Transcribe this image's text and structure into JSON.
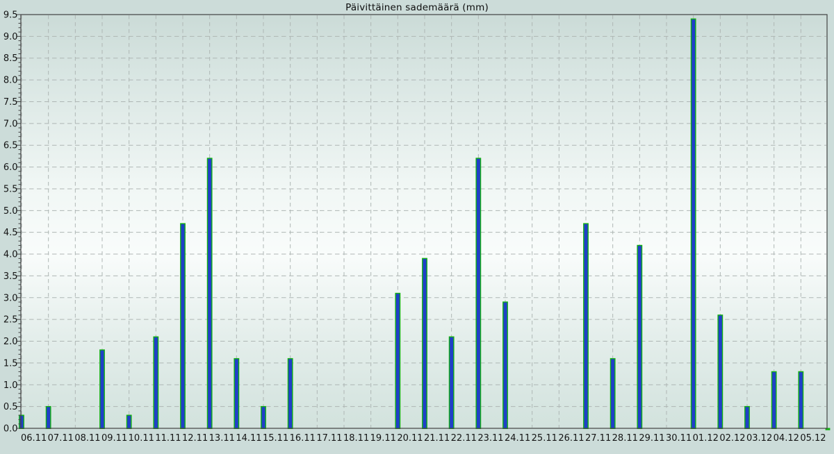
{
  "chart_data": {
    "type": "bar",
    "title": "Päivittäinen sademäärä (mm)",
    "xlabel": "",
    "ylabel": "",
    "categories": [
      "06.11",
      "07.11",
      "08.11",
      "09.11",
      "10.11",
      "11.11",
      "12.11",
      "13.11",
      "14.11",
      "15.11",
      "16.11",
      "17.11",
      "18.11",
      "19.11",
      "20.11",
      "21.11",
      "22.11",
      "23.11",
      "24.11",
      "25.11",
      "26.11",
      "27.11",
      "28.11",
      "29.11",
      "30.11",
      "01.12",
      "02.12",
      "03.12",
      "04.12",
      "05.12"
    ],
    "values": [
      0.3,
      0.5,
      0,
      1.8,
      0.3,
      2.1,
      4.7,
      6.2,
      1.6,
      0.5,
      1.6,
      0,
      0,
      0,
      3.1,
      3.9,
      2.1,
      6.2,
      2.9,
      0,
      0,
      4.7,
      1.6,
      4.2,
      0,
      9.4,
      2.6,
      0.5,
      1.3,
      1.3
    ],
    "ylim": [
      0.0,
      9.5
    ],
    "ytick_step": 0.5,
    "minor_tick_step": 0.1,
    "y_ticks": [
      "0.0",
      "0.5",
      "1.0",
      "1.5",
      "2.0",
      "2.5",
      "3.0",
      "3.5",
      "4.0",
      "4.5",
      "5.0",
      "5.5",
      "6.0",
      "6.5",
      "7.0",
      "7.5",
      "8.0",
      "8.5",
      "9.0",
      "9.5"
    ],
    "grid": "dashed, horizontal and vertical",
    "legend": "none",
    "clipped_zero_bar_at_right_edge": true
  },
  "colors": {
    "page_background": "#ccdcd9",
    "plot_gradient_top": "#cbdbd7",
    "plot_gradient_upper": "#d9e6e3",
    "plot_gradient_mid": "#f9fcfb",
    "plot_gradient_lower": "#e4eeeb",
    "plot_gradient_bottom": "#d2e2dd",
    "bar_fill": "#2040c8",
    "bar_edge": "#12b012",
    "grid": "#aeb6b4",
    "axis": "#424242",
    "text": "#141414"
  }
}
